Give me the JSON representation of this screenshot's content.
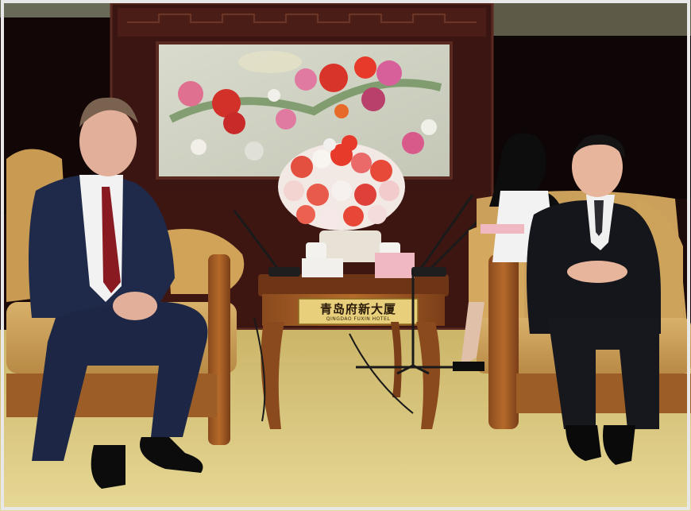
{
  "photo": {
    "scene": "meeting-room",
    "plaque_chinese": "青岛府新大厦",
    "plaque_english": "QINGDAO FUXIN HOTEL"
  },
  "colors": {
    "wall_panel": "#2a0f0c",
    "carpet": "#d8c77c",
    "sofa": "#c89a4f",
    "suit_left": "#1f2a4a",
    "suit_right": "#15161c",
    "painting_bg": "#cfd2c4"
  }
}
